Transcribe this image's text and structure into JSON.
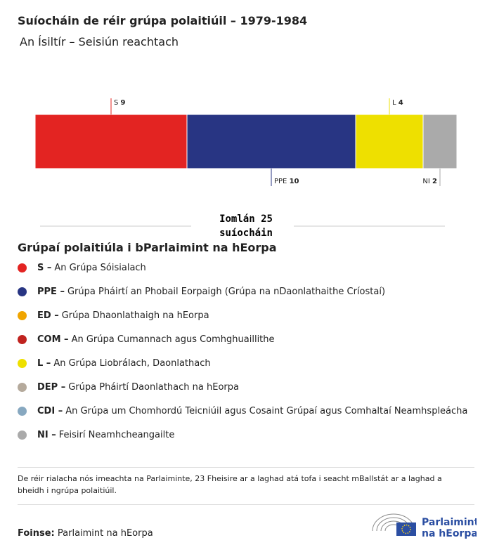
{
  "chart_data": {
    "type": "stacked-bar",
    "title": "Suíocháin de réir grúpa polaitiúil – 1979-1984",
    "subtitle": "An Ísiltír – Seisiún reachtach",
    "series": [
      {
        "name": "S",
        "color": "#e32422",
        "values": [
          9
        ]
      },
      {
        "name": "PPE",
        "color": "#283583",
        "values": [
          10
        ]
      },
      {
        "name": "L",
        "color": "#eee000",
        "values": [
          4
        ]
      },
      {
        "name": "NI",
        "color": "#aaaaaa",
        "values": [
          2
        ]
      }
    ],
    "total_prefix": "Iomlán",
    "total": 25,
    "total_suffix": "suíocháin",
    "legend_title": "Grúpaí polaitiúla i bParlaimint na hEorpa",
    "legend": [
      {
        "abbr": "S –",
        "text": "An Grúpa Sóisialach",
        "color": "#e32422"
      },
      {
        "abbr": "PPE –",
        "text": "Grúpa Pháirtí an Phobail Eorpaigh (Grúpa na nDaonlathaithe Críostaí)",
        "color": "#283583"
      },
      {
        "abbr": "ED –",
        "text": "Grúpa Dhaonlathaigh na hEorpa",
        "color": "#f0a500"
      },
      {
        "abbr": "COM –",
        "text": "An Grúpa Cumannach agus Comhghuaillithe",
        "color": "#c0231f"
      },
      {
        "abbr": "L –",
        "text": "An Grúpa Liobrálach, Daonlathach",
        "color": "#eee000"
      },
      {
        "abbr": "DEP –",
        "text": "Grúpa Pháirtí Daonlathach na hEorpa",
        "color": "#b5aa9c"
      },
      {
        "abbr": "CDI –",
        "text": "An Grúpa um Chomhordú Teicniúil agus Cosaint Grúpaí agus Comhaltaí Neamhspleácha",
        "color": "#87a8c0"
      },
      {
        "abbr": "NI –",
        "text": "Feisirí Neamhcheangailte",
        "color": "#aaaaaa"
      }
    ],
    "note": "De réir rialacha nós imeachta na Parlaiminte, 23 Fheisire ar a laghad atá tofa i seacht mBallstát ar a laghad a bheidh i ngrúpa polaitiúil.",
    "source_label": "Foinse:",
    "source": "Parlaimint na hEorpa",
    "logo_line1": "Parlaimint",
    "logo_line2": "na hEorpa"
  }
}
